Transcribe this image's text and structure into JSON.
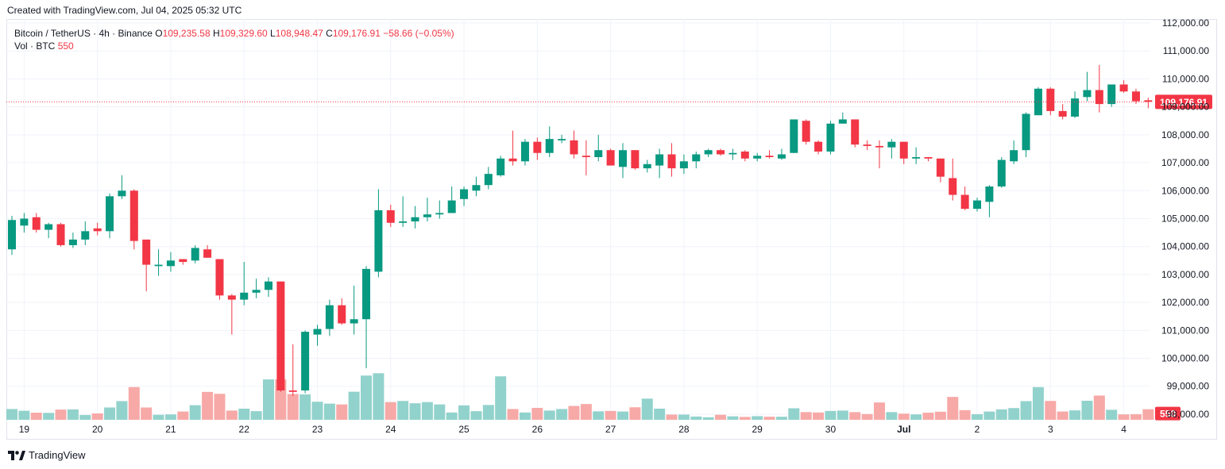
{
  "header": {
    "created_text": "Created with TradingView.com, Jul 04, 2025 05:32 UTC"
  },
  "legend": {
    "symbol": "Bitcoin / TetherUS · 4h · Binance",
    "o_label": "O",
    "o_value": "109,235.58",
    "h_label": "H",
    "h_value": "109,329.60",
    "l_label": "L",
    "l_value": "108,948.47",
    "c_label": "C",
    "c_value": "109,176.91",
    "change": "−58.66 (−0.05%)",
    "vol_label": "Vol · BTC",
    "vol_value": "550"
  },
  "footer": {
    "brand": "TradingView"
  },
  "colors": {
    "up": "#089981",
    "down": "#f23645",
    "vol_up": "#92d2cc",
    "vol_down": "#f7a9a7",
    "grid": "#f0f3fa",
    "axis_text": "#131722"
  },
  "chart_data": {
    "type": "candlestick",
    "ylim": [
      97800,
      112000
    ],
    "y_ticks": [
      98000,
      99000,
      100000,
      101000,
      102000,
      103000,
      104000,
      105000,
      106000,
      107000,
      108000,
      109000,
      110000,
      111000,
      112000
    ],
    "y_tick_labels": [
      "98,000.00",
      "99,000.00",
      "100,000.00",
      "101,000.00",
      "102,000.00",
      "103,000.00",
      "104,000.00",
      "105,000.00",
      "106,000.00",
      "107,000.00",
      "108,000.00",
      "109,000.00",
      "110,000.00",
      "111,000.00",
      "112,000.00"
    ],
    "x_ticks": [
      {
        "label": "19",
        "index": 1
      },
      {
        "label": "20",
        "index": 7
      },
      {
        "label": "21",
        "index": 13
      },
      {
        "label": "22",
        "index": 19
      },
      {
        "label": "23",
        "index": 25
      },
      {
        "label": "24",
        "index": 31
      },
      {
        "label": "25",
        "index": 37
      },
      {
        "label": "26",
        "index": 43
      },
      {
        "label": "27",
        "index": 49
      },
      {
        "label": "28",
        "index": 55
      },
      {
        "label": "29",
        "index": 61
      },
      {
        "label": "30",
        "index": 67
      },
      {
        "label": "Jul",
        "index": 73
      },
      {
        "label": "2",
        "index": 79
      },
      {
        "label": "3",
        "index": 85
      },
      {
        "label": "4",
        "index": 91
      }
    ],
    "last_price": 109176.91,
    "last_price_label": "109,176.91",
    "last_volume": 550,
    "last_volume_label": "550",
    "volume_max": 3300,
    "candles": [
      {
        "o": 103900,
        "h": 105100,
        "l": 103700,
        "c": 104950,
        "v": 560
      },
      {
        "o": 104750,
        "h": 105200,
        "l": 104500,
        "c": 105000,
        "v": 470
      },
      {
        "o": 105050,
        "h": 105200,
        "l": 104500,
        "c": 104600,
        "v": 370
      },
      {
        "o": 104600,
        "h": 104850,
        "l": 104300,
        "c": 104800,
        "v": 360
      },
      {
        "o": 104800,
        "h": 104850,
        "l": 104000,
        "c": 104050,
        "v": 530
      },
      {
        "o": 104050,
        "h": 104500,
        "l": 103950,
        "c": 104250,
        "v": 540
      },
      {
        "o": 104250,
        "h": 104900,
        "l": 104050,
        "c": 104550,
        "v": 250
      },
      {
        "o": 104650,
        "h": 104850,
        "l": 104400,
        "c": 104550,
        "v": 330
      },
      {
        "o": 104550,
        "h": 105900,
        "l": 104300,
        "c": 105800,
        "v": 640
      },
      {
        "o": 105800,
        "h": 106550,
        "l": 105700,
        "c": 106000,
        "v": 970
      },
      {
        "o": 106000,
        "h": 106050,
        "l": 103900,
        "c": 104200,
        "v": 1700
      },
      {
        "o": 104250,
        "h": 104250,
        "l": 102400,
        "c": 103350,
        "v": 640
      },
      {
        "o": 103300,
        "h": 103900,
        "l": 102950,
        "c": 103350,
        "v": 260
      },
      {
        "o": 103300,
        "h": 103800,
        "l": 103100,
        "c": 103500,
        "v": 280
      },
      {
        "o": 103550,
        "h": 103550,
        "l": 103350,
        "c": 103450,
        "v": 430
      },
      {
        "o": 103500,
        "h": 104050,
        "l": 103400,
        "c": 103950,
        "v": 760
      },
      {
        "o": 103900,
        "h": 104050,
        "l": 103600,
        "c": 103600,
        "v": 1450
      },
      {
        "o": 103550,
        "h": 103550,
        "l": 102100,
        "c": 102250,
        "v": 1350
      },
      {
        "o": 102250,
        "h": 102300,
        "l": 100850,
        "c": 102100,
        "v": 480
      },
      {
        "o": 102100,
        "h": 103450,
        "l": 101900,
        "c": 102350,
        "v": 580
      },
      {
        "o": 102350,
        "h": 102850,
        "l": 102150,
        "c": 102450,
        "v": 450
      },
      {
        "o": 102450,
        "h": 102900,
        "l": 102200,
        "c": 102750,
        "v": 2100
      },
      {
        "o": 102750,
        "h": 102750,
        "l": 98800,
        "c": 98850,
        "v": 2100
      },
      {
        "o": 98850,
        "h": 100500,
        "l": 98650,
        "c": 98800,
        "v": 1340
      },
      {
        "o": 98850,
        "h": 101000,
        "l": 98750,
        "c": 100950,
        "v": 1320
      },
      {
        "o": 100850,
        "h": 101200,
        "l": 100450,
        "c": 101050,
        "v": 940
      },
      {
        "o": 101050,
        "h": 102100,
        "l": 100800,
        "c": 101900,
        "v": 840
      },
      {
        "o": 101900,
        "h": 102150,
        "l": 101200,
        "c": 101250,
        "v": 800
      },
      {
        "o": 101250,
        "h": 102600,
        "l": 100850,
        "c": 101400,
        "v": 1460
      },
      {
        "o": 101400,
        "h": 103300,
        "l": 99650,
        "c": 103200,
        "v": 2300
      },
      {
        "o": 103100,
        "h": 106050,
        "l": 102900,
        "c": 105300,
        "v": 2420
      },
      {
        "o": 105300,
        "h": 105500,
        "l": 104700,
        "c": 104850,
        "v": 920
      },
      {
        "o": 104850,
        "h": 105800,
        "l": 104700,
        "c": 104900,
        "v": 980
      },
      {
        "o": 104900,
        "h": 105450,
        "l": 104650,
        "c": 105050,
        "v": 860
      },
      {
        "o": 105050,
        "h": 105750,
        "l": 104900,
        "c": 105150,
        "v": 920
      },
      {
        "o": 105150,
        "h": 105650,
        "l": 105000,
        "c": 105200,
        "v": 800
      },
      {
        "o": 105200,
        "h": 106150,
        "l": 105200,
        "c": 105650,
        "v": 380
      },
      {
        "o": 105700,
        "h": 106150,
        "l": 105450,
        "c": 106050,
        "v": 750
      },
      {
        "o": 106000,
        "h": 106500,
        "l": 105800,
        "c": 106200,
        "v": 450
      },
      {
        "o": 106200,
        "h": 106850,
        "l": 106050,
        "c": 106600,
        "v": 770
      },
      {
        "o": 106550,
        "h": 107250,
        "l": 106500,
        "c": 107150,
        "v": 2260
      },
      {
        "o": 107150,
        "h": 108150,
        "l": 106900,
        "c": 107050,
        "v": 560
      },
      {
        "o": 107050,
        "h": 107850,
        "l": 106900,
        "c": 107750,
        "v": 380
      },
      {
        "o": 107750,
        "h": 107900,
        "l": 107100,
        "c": 107350,
        "v": 620
      },
      {
        "o": 107350,
        "h": 108300,
        "l": 107200,
        "c": 107850,
        "v": 480
      },
      {
        "o": 107800,
        "h": 108000,
        "l": 107700,
        "c": 107850,
        "v": 560
      },
      {
        "o": 107800,
        "h": 108150,
        "l": 107150,
        "c": 107300,
        "v": 720
      },
      {
        "o": 107250,
        "h": 107800,
        "l": 106550,
        "c": 107200,
        "v": 820
      },
      {
        "o": 107200,
        "h": 108000,
        "l": 107050,
        "c": 107450,
        "v": 440
      },
      {
        "o": 107450,
        "h": 107500,
        "l": 106900,
        "c": 106900,
        "v": 460
      },
      {
        "o": 106850,
        "h": 107700,
        "l": 106450,
        "c": 107450,
        "v": 430
      },
      {
        "o": 107450,
        "h": 107450,
        "l": 106750,
        "c": 106800,
        "v": 650
      },
      {
        "o": 106800,
        "h": 107100,
        "l": 106650,
        "c": 106950,
        "v": 1100
      },
      {
        "o": 106900,
        "h": 107500,
        "l": 106450,
        "c": 107300,
        "v": 580
      },
      {
        "o": 107300,
        "h": 107700,
        "l": 106500,
        "c": 106800,
        "v": 270
      },
      {
        "o": 106800,
        "h": 107300,
        "l": 106600,
        "c": 107050,
        "v": 270
      },
      {
        "o": 107050,
        "h": 107400,
        "l": 106800,
        "c": 107300,
        "v": 170
      },
      {
        "o": 107300,
        "h": 107500,
        "l": 107200,
        "c": 107450,
        "v": 130
      },
      {
        "o": 107450,
        "h": 107500,
        "l": 107250,
        "c": 107300,
        "v": 260
      },
      {
        "o": 107300,
        "h": 107500,
        "l": 107100,
        "c": 107350,
        "v": 180
      },
      {
        "o": 107400,
        "h": 107450,
        "l": 107050,
        "c": 107150,
        "v": 150
      },
      {
        "o": 107150,
        "h": 107350,
        "l": 107050,
        "c": 107250,
        "v": 190
      },
      {
        "o": 107250,
        "h": 107450,
        "l": 107150,
        "c": 107200,
        "v": 160
      },
      {
        "o": 107150,
        "h": 107500,
        "l": 107100,
        "c": 107300,
        "v": 160
      },
      {
        "o": 107350,
        "h": 108550,
        "l": 107350,
        "c": 108550,
        "v": 600
      },
      {
        "o": 108500,
        "h": 108550,
        "l": 107650,
        "c": 107750,
        "v": 400
      },
      {
        "o": 107750,
        "h": 107800,
        "l": 107300,
        "c": 107400,
        "v": 380
      },
      {
        "o": 107400,
        "h": 108500,
        "l": 107300,
        "c": 108400,
        "v": 460
      },
      {
        "o": 108400,
        "h": 108800,
        "l": 108400,
        "c": 108550,
        "v": 480
      },
      {
        "o": 108550,
        "h": 108550,
        "l": 107550,
        "c": 107650,
        "v": 400
      },
      {
        "o": 107650,
        "h": 107800,
        "l": 107450,
        "c": 107600,
        "v": 300
      },
      {
        "o": 107600,
        "h": 107800,
        "l": 106800,
        "c": 107550,
        "v": 900
      },
      {
        "o": 107550,
        "h": 107850,
        "l": 107150,
        "c": 107750,
        "v": 400
      },
      {
        "o": 107750,
        "h": 107750,
        "l": 106950,
        "c": 107150,
        "v": 320
      },
      {
        "o": 107150,
        "h": 107550,
        "l": 106950,
        "c": 107200,
        "v": 280
      },
      {
        "o": 107200,
        "h": 107200,
        "l": 107050,
        "c": 107150,
        "v": 370
      },
      {
        "o": 107150,
        "h": 107150,
        "l": 106300,
        "c": 106500,
        "v": 420
      },
      {
        "o": 106450,
        "h": 107150,
        "l": 105650,
        "c": 105850,
        "v": 1190
      },
      {
        "o": 105850,
        "h": 106150,
        "l": 105300,
        "c": 105350,
        "v": 500
      },
      {
        "o": 105350,
        "h": 105750,
        "l": 105250,
        "c": 105650,
        "v": 290
      },
      {
        "o": 105600,
        "h": 106200,
        "l": 105050,
        "c": 106150,
        "v": 430
      },
      {
        "o": 106150,
        "h": 107200,
        "l": 106100,
        "c": 107100,
        "v": 540
      },
      {
        "o": 107050,
        "h": 107800,
        "l": 106950,
        "c": 107450,
        "v": 610
      },
      {
        "o": 107450,
        "h": 108800,
        "l": 107200,
        "c": 108750,
        "v": 970
      },
      {
        "o": 108700,
        "h": 109700,
        "l": 108700,
        "c": 109650,
        "v": 1700
      },
      {
        "o": 109650,
        "h": 109700,
        "l": 108700,
        "c": 108850,
        "v": 980
      },
      {
        "o": 108850,
        "h": 109100,
        "l": 108550,
        "c": 108650,
        "v": 430
      },
      {
        "o": 108650,
        "h": 109550,
        "l": 108600,
        "c": 109300,
        "v": 490
      },
      {
        "o": 109350,
        "h": 110250,
        "l": 109200,
        "c": 109600,
        "v": 990
      },
      {
        "o": 109600,
        "h": 110500,
        "l": 108800,
        "c": 109100,
        "v": 1260
      },
      {
        "o": 109100,
        "h": 109800,
        "l": 109000,
        "c": 109800,
        "v": 520
      },
      {
        "o": 109800,
        "h": 109950,
        "l": 109500,
        "c": 109550,
        "v": 280
      },
      {
        "o": 109550,
        "h": 109650,
        "l": 109100,
        "c": 109200,
        "v": 290
      },
      {
        "o": 109235.58,
        "h": 109329.6,
        "l": 108948.47,
        "c": 109176.91,
        "v": 550
      }
    ]
  }
}
